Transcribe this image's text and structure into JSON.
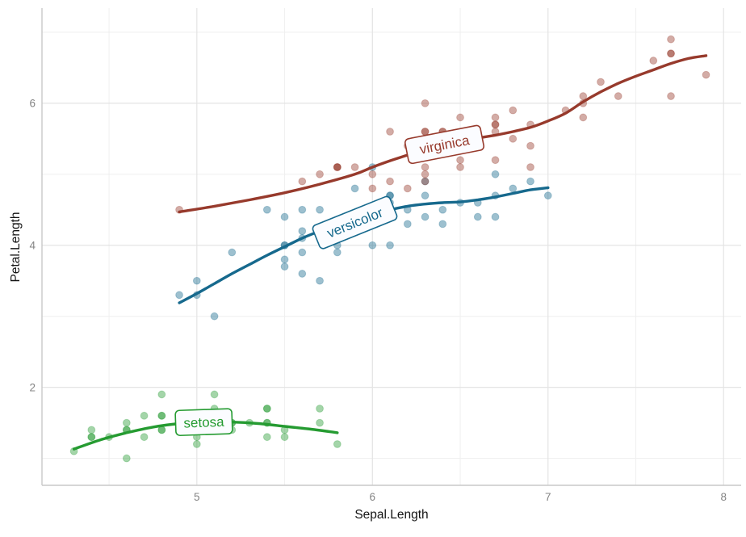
{
  "chart_data": {
    "type": "scatter",
    "title": "",
    "xlabel": "Sepal.Length",
    "ylabel": "Petal.Length",
    "xlim": [
      4.118,
      8.1
    ],
    "ylim": [
      0.62,
      7.34
    ],
    "x_ticks": [
      5,
      6,
      7,
      8
    ],
    "y_ticks": [
      2,
      4,
      6
    ],
    "x_minor_gridlines": [
      4.5,
      5.5,
      6.5,
      7.5
    ],
    "y_minor_gridlines": [
      1,
      3,
      5,
      7
    ],
    "grid": "major+minor on white panel, light gray left and bottom axis lines",
    "legend": "inline curve labels in rounded boxes",
    "point_opacity": 0.42,
    "colors": {
      "setosa": "#259b31",
      "versicolor": "#16698d",
      "virginica": "#973a2c",
      "grid_major": "#e4e4e4",
      "grid_minor": "#f0f0f0",
      "axis_line": "#c9c9c9",
      "tick_text": "#848484",
      "label_box_fill": "#fbfcff"
    },
    "series": [
      {
        "name": "setosa",
        "label": "setosa",
        "color": "#259b31",
        "label_box": {
          "x": 5.04,
          "y": 1.51,
          "angle": -2
        },
        "smooth": [
          [
            4.3,
            1.13
          ],
          [
            4.45,
            1.26
          ],
          [
            4.6,
            1.36
          ],
          [
            4.75,
            1.44
          ],
          [
            4.9,
            1.49
          ],
          [
            5.05,
            1.51
          ],
          [
            5.2,
            1.51
          ],
          [
            5.35,
            1.49
          ],
          [
            5.5,
            1.45
          ],
          [
            5.65,
            1.41
          ],
          [
            5.8,
            1.36
          ]
        ],
        "points": [
          [
            5.1,
            1.4
          ],
          [
            4.9,
            1.4
          ],
          [
            4.7,
            1.3
          ],
          [
            4.6,
            1.5
          ],
          [
            5.0,
            1.4
          ],
          [
            5.4,
            1.7
          ],
          [
            4.6,
            1.4
          ],
          [
            5.0,
            1.5
          ],
          [
            4.4,
            1.4
          ],
          [
            4.9,
            1.5
          ],
          [
            5.4,
            1.5
          ],
          [
            4.8,
            1.6
          ],
          [
            4.8,
            1.4
          ],
          [
            4.3,
            1.1
          ],
          [
            5.8,
            1.2
          ],
          [
            5.7,
            1.5
          ],
          [
            5.4,
            1.3
          ],
          [
            5.1,
            1.4
          ],
          [
            5.7,
            1.7
          ],
          [
            5.1,
            1.5
          ],
          [
            5.4,
            1.7
          ],
          [
            5.1,
            1.5
          ],
          [
            4.6,
            1.0
          ],
          [
            5.1,
            1.7
          ],
          [
            4.8,
            1.9
          ],
          [
            5.0,
            1.6
          ],
          [
            5.0,
            1.6
          ],
          [
            5.2,
            1.5
          ],
          [
            5.2,
            1.4
          ],
          [
            4.7,
            1.6
          ],
          [
            4.8,
            1.6
          ],
          [
            5.4,
            1.5
          ],
          [
            5.2,
            1.5
          ],
          [
            5.5,
            1.4
          ],
          [
            4.9,
            1.5
          ],
          [
            5.0,
            1.2
          ],
          [
            5.5,
            1.3
          ],
          [
            4.9,
            1.4
          ],
          [
            4.4,
            1.3
          ],
          [
            5.1,
            1.5
          ],
          [
            5.0,
            1.3
          ],
          [
            4.5,
            1.3
          ],
          [
            4.4,
            1.3
          ],
          [
            5.0,
            1.6
          ],
          [
            5.1,
            1.9
          ],
          [
            4.8,
            1.4
          ],
          [
            5.1,
            1.6
          ],
          [
            4.6,
            1.4
          ],
          [
            5.3,
            1.5
          ],
          [
            5.0,
            1.4
          ]
        ]
      },
      {
        "name": "versicolor",
        "label": "versicolor",
        "color": "#16698d",
        "label_box": {
          "x": 5.9,
          "y": 4.32,
          "angle": -22
        },
        "smooth": [
          [
            4.9,
            3.19
          ],
          [
            5.0,
            3.32
          ],
          [
            5.1,
            3.46
          ],
          [
            5.2,
            3.6
          ],
          [
            5.3,
            3.73
          ],
          [
            5.4,
            3.86
          ],
          [
            5.5,
            3.98
          ],
          [
            5.6,
            4.1
          ],
          [
            5.7,
            4.2
          ],
          [
            5.8,
            4.29
          ],
          [
            5.9,
            4.37
          ],
          [
            6.0,
            4.44
          ],
          [
            6.1,
            4.5
          ],
          [
            6.2,
            4.55
          ],
          [
            6.3,
            4.58
          ],
          [
            6.4,
            4.6
          ],
          [
            6.5,
            4.61
          ],
          [
            6.6,
            4.64
          ],
          [
            6.7,
            4.68
          ],
          [
            6.8,
            4.73
          ],
          [
            6.9,
            4.78
          ],
          [
            7.0,
            4.81
          ]
        ],
        "points": [
          [
            7.0,
            4.7
          ],
          [
            6.4,
            4.5
          ],
          [
            6.9,
            4.9
          ],
          [
            5.5,
            4.0
          ],
          [
            6.5,
            4.6
          ],
          [
            5.7,
            4.5
          ],
          [
            6.3,
            4.7
          ],
          [
            4.9,
            3.3
          ],
          [
            6.6,
            4.6
          ],
          [
            5.2,
            3.9
          ],
          [
            5.0,
            3.5
          ],
          [
            5.9,
            4.2
          ],
          [
            6.0,
            4.0
          ],
          [
            6.1,
            4.7
          ],
          [
            5.6,
            3.6
          ],
          [
            6.7,
            4.4
          ],
          [
            5.6,
            4.5
          ],
          [
            5.8,
            4.1
          ],
          [
            6.2,
            4.5
          ],
          [
            5.6,
            3.9
          ],
          [
            5.9,
            4.8
          ],
          [
            6.1,
            4.0
          ],
          [
            6.3,
            4.9
          ],
          [
            6.1,
            4.7
          ],
          [
            6.4,
            4.3
          ],
          [
            6.6,
            4.4
          ],
          [
            6.8,
            4.8
          ],
          [
            6.7,
            5.0
          ],
          [
            6.0,
            4.5
          ],
          [
            5.7,
            3.5
          ],
          [
            5.5,
            3.8
          ],
          [
            5.5,
            3.7
          ],
          [
            5.8,
            3.9
          ],
          [
            6.0,
            5.1
          ],
          [
            5.4,
            4.5
          ],
          [
            6.0,
            4.5
          ],
          [
            6.7,
            4.7
          ],
          [
            6.3,
            4.4
          ],
          [
            5.6,
            4.1
          ],
          [
            5.5,
            4.0
          ],
          [
            5.5,
            4.4
          ],
          [
            6.1,
            4.6
          ],
          [
            5.8,
            4.0
          ],
          [
            5.0,
            3.3
          ],
          [
            5.6,
            4.2
          ],
          [
            5.7,
            4.2
          ],
          [
            5.7,
            4.2
          ],
          [
            6.2,
            4.3
          ],
          [
            5.1,
            3.0
          ],
          [
            5.7,
            4.1
          ]
        ]
      },
      {
        "name": "virginica",
        "label": "virginica",
        "color": "#973a2c",
        "label_box": {
          "x": 6.41,
          "y": 5.42,
          "angle": -11
        },
        "smooth": [
          [
            4.9,
            4.47
          ],
          [
            5.1,
            4.55
          ],
          [
            5.3,
            4.64
          ],
          [
            5.5,
            4.74
          ],
          [
            5.7,
            4.86
          ],
          [
            5.9,
            5.0
          ],
          [
            6.0,
            5.1
          ],
          [
            6.1,
            5.19
          ],
          [
            6.2,
            5.27
          ],
          [
            6.3,
            5.35
          ],
          [
            6.4,
            5.42
          ],
          [
            6.5,
            5.47
          ],
          [
            6.6,
            5.51
          ],
          [
            6.7,
            5.55
          ],
          [
            6.8,
            5.6
          ],
          [
            6.9,
            5.66
          ],
          [
            7.0,
            5.75
          ],
          [
            7.1,
            5.86
          ],
          [
            7.2,
            6.02
          ],
          [
            7.3,
            6.16
          ],
          [
            7.4,
            6.28
          ],
          [
            7.5,
            6.38
          ],
          [
            7.6,
            6.47
          ],
          [
            7.7,
            6.56
          ],
          [
            7.8,
            6.63
          ],
          [
            7.9,
            6.67
          ]
        ],
        "points": [
          [
            6.3,
            6.0
          ],
          [
            5.8,
            5.1
          ],
          [
            7.1,
            5.9
          ],
          [
            6.3,
            5.6
          ],
          [
            6.5,
            5.8
          ],
          [
            7.6,
            6.6
          ],
          [
            4.9,
            4.5
          ],
          [
            7.3,
            6.3
          ],
          [
            6.7,
            5.8
          ],
          [
            7.2,
            6.1
          ],
          [
            6.5,
            5.1
          ],
          [
            6.4,
            5.3
          ],
          [
            6.8,
            5.5
          ],
          [
            5.7,
            5.0
          ],
          [
            5.8,
            5.1
          ],
          [
            6.4,
            5.3
          ],
          [
            6.5,
            5.5
          ],
          [
            7.7,
            6.7
          ],
          [
            7.7,
            6.9
          ],
          [
            6.0,
            5.0
          ],
          [
            6.9,
            5.7
          ],
          [
            5.6,
            4.9
          ],
          [
            7.7,
            6.7
          ],
          [
            6.3,
            4.9
          ],
          [
            6.7,
            5.7
          ],
          [
            7.2,
            6.0
          ],
          [
            6.2,
            4.8
          ],
          [
            6.1,
            4.9
          ],
          [
            6.4,
            5.6
          ],
          [
            7.2,
            5.8
          ],
          [
            7.4,
            6.1
          ],
          [
            7.9,
            6.4
          ],
          [
            6.4,
            5.6
          ],
          [
            6.3,
            5.1
          ],
          [
            6.1,
            5.6
          ],
          [
            7.7,
            6.1
          ],
          [
            6.3,
            5.6
          ],
          [
            6.4,
            5.5
          ],
          [
            6.0,
            4.8
          ],
          [
            6.9,
            5.4
          ],
          [
            6.7,
            5.6
          ],
          [
            6.9,
            5.1
          ],
          [
            5.8,
            5.1
          ],
          [
            6.8,
            5.9
          ],
          [
            6.7,
            5.7
          ],
          [
            6.7,
            5.2
          ],
          [
            6.3,
            5.0
          ],
          [
            6.5,
            5.2
          ],
          [
            6.2,
            5.4
          ],
          [
            5.9,
            5.1
          ]
        ]
      }
    ]
  }
}
